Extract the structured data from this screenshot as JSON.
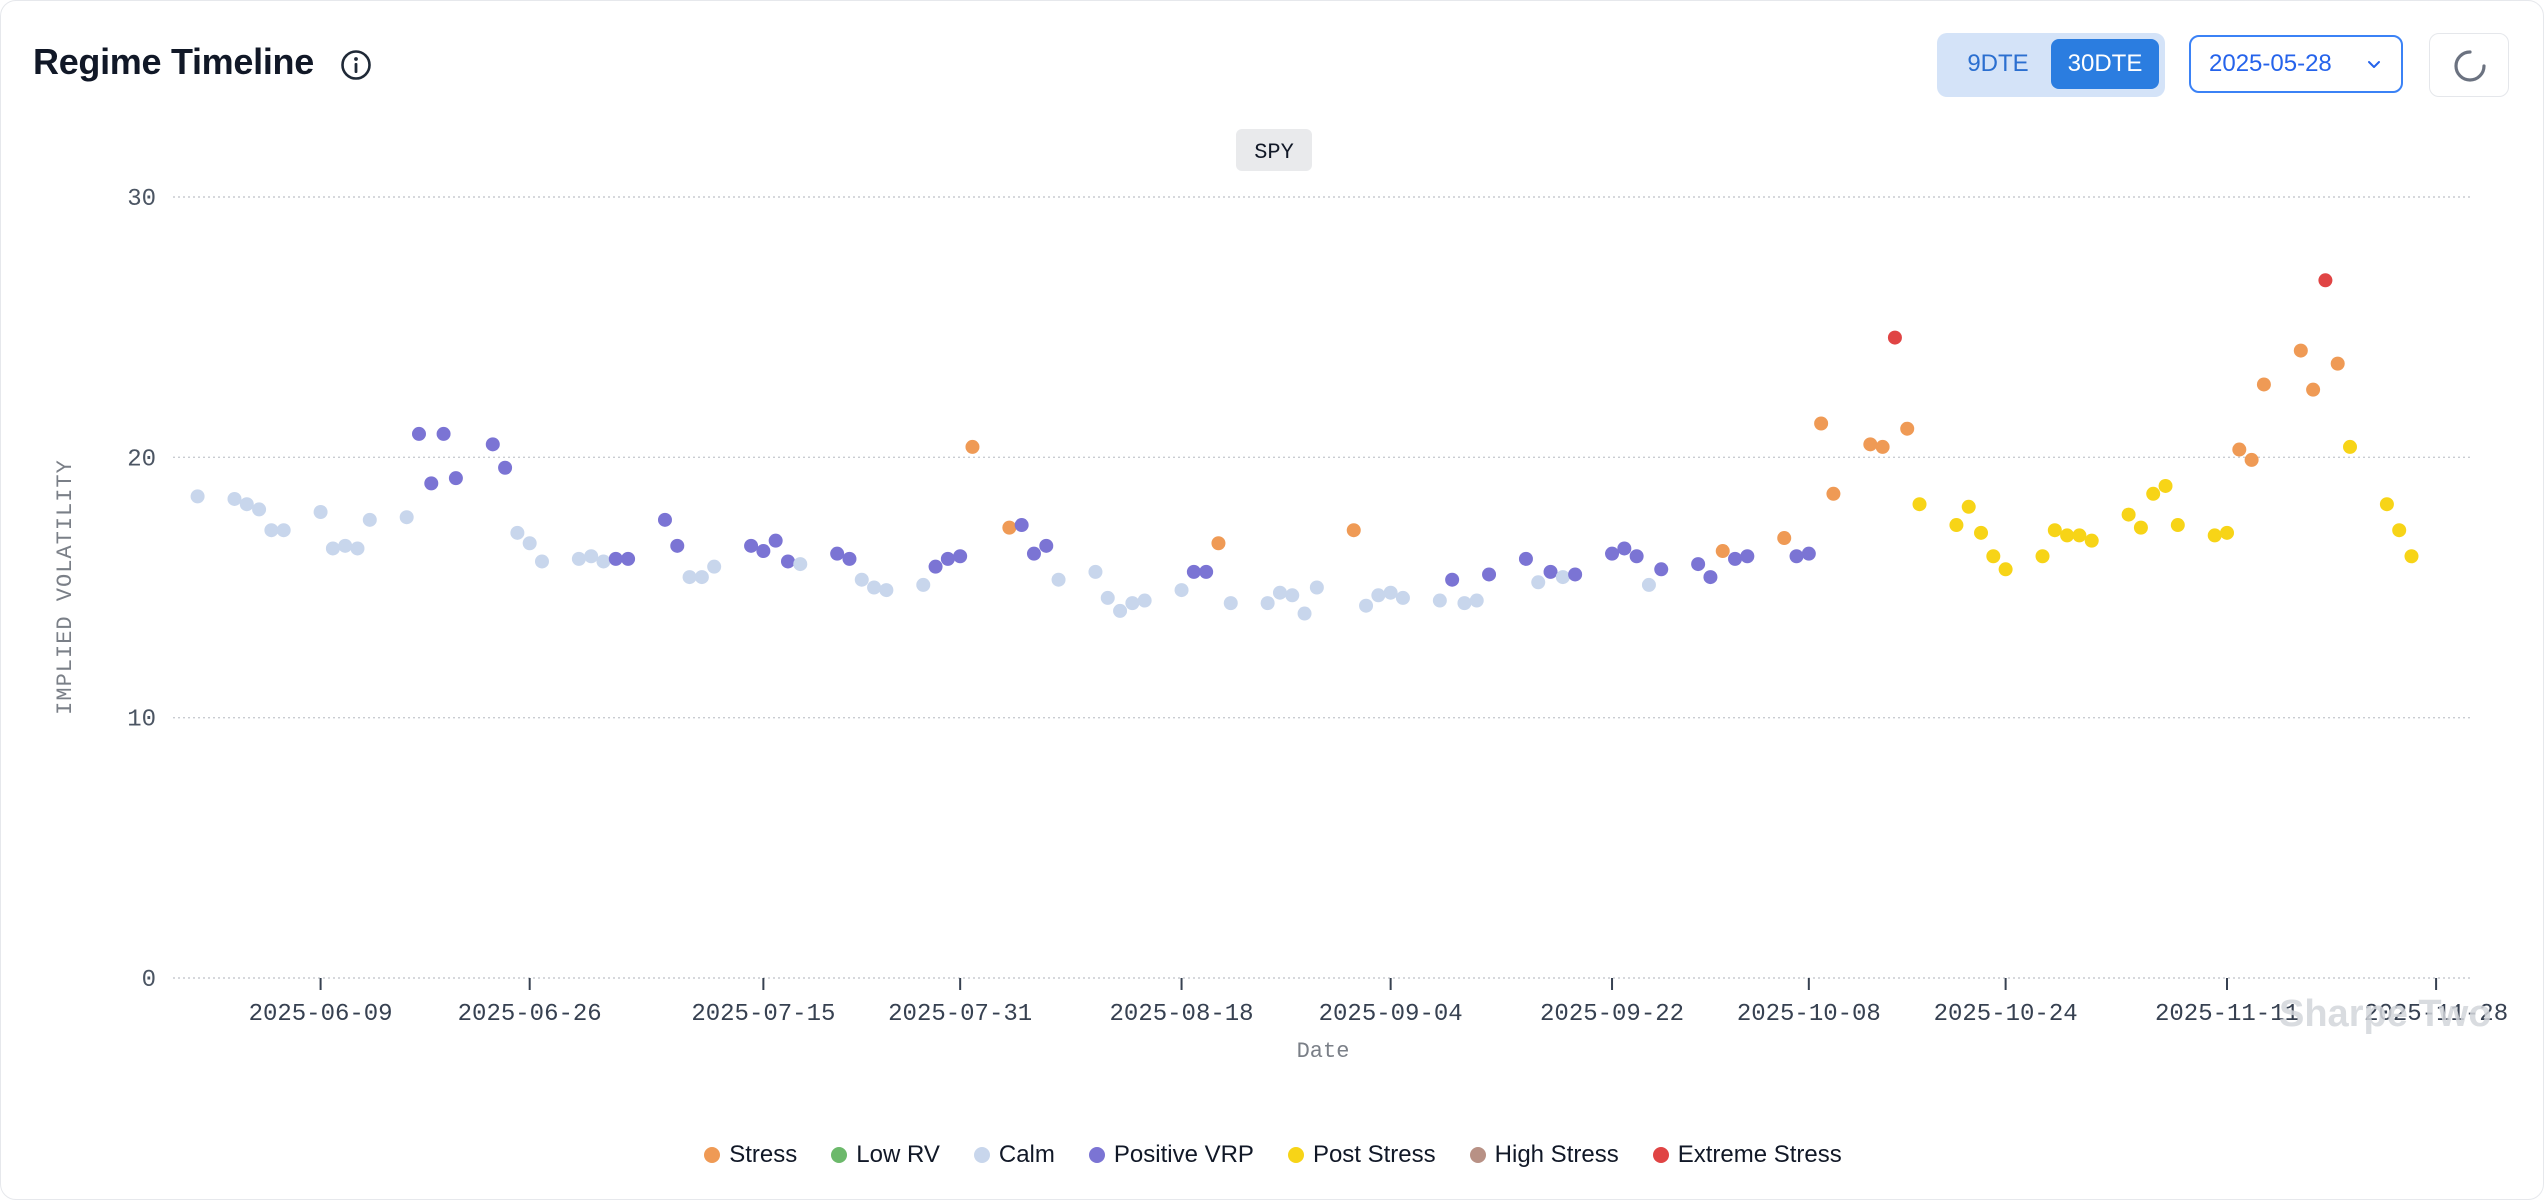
{
  "header": {
    "title": "Regime Timeline",
    "info_icon": "info-icon",
    "dte_options": [
      "9DTE",
      "30DTE"
    ],
    "dte_selected": "30DTE",
    "date_value": "2025-05-28",
    "refresh_icon": "loading-spinner-icon"
  },
  "watermark": "Sharpe Two",
  "colors": {
    "Stress": "#ef9a55",
    "Low RV": "#6cb96b",
    "Calm": "#c8d6ec",
    "Positive VRP": "#7b74d4",
    "Post Stress": "#f7d417",
    "High Stress": "#b89185",
    "Extreme Stress": "#e04444"
  },
  "chart_data": {
    "type": "scatter",
    "badge": "SPY",
    "xlabel": "Date",
    "ylabel": "IMPLIED VOLATILITY",
    "ylim": [
      0,
      30
    ],
    "xlim": [
      "2025-05-28",
      "2025-12-01"
    ],
    "yticks": [
      0,
      10,
      20,
      30
    ],
    "xticks": [
      "2025-06-09",
      "2025-06-26",
      "2025-07-15",
      "2025-07-31",
      "2025-08-18",
      "2025-09-04",
      "2025-09-22",
      "2025-10-08",
      "2025-10-24",
      "2025-11-11",
      "2025-11-28"
    ],
    "grid": true,
    "legend_position": "bottom-center",
    "legend": [
      "Stress",
      "Low RV",
      "Calm",
      "Positive VRP",
      "Post Stress",
      "High Stress",
      "Extreme Stress"
    ],
    "points": [
      {
        "date": "2025-05-30",
        "iv": 18.5,
        "regime": "Calm"
      },
      {
        "date": "2025-06-02",
        "iv": 18.4,
        "regime": "Calm"
      },
      {
        "date": "2025-06-03",
        "iv": 18.2,
        "regime": "Calm"
      },
      {
        "date": "2025-06-04",
        "iv": 18.0,
        "regime": "Calm"
      },
      {
        "date": "2025-06-05",
        "iv": 17.2,
        "regime": "Calm"
      },
      {
        "date": "2025-06-06",
        "iv": 17.2,
        "regime": "Calm"
      },
      {
        "date": "2025-06-09",
        "iv": 17.9,
        "regime": "Calm"
      },
      {
        "date": "2025-06-10",
        "iv": 16.5,
        "regime": "Calm"
      },
      {
        "date": "2025-06-11",
        "iv": 16.6,
        "regime": "Calm"
      },
      {
        "date": "2025-06-12",
        "iv": 16.5,
        "regime": "Calm"
      },
      {
        "date": "2025-06-13",
        "iv": 17.6,
        "regime": "Calm"
      },
      {
        "date": "2025-06-16",
        "iv": 17.7,
        "regime": "Calm"
      },
      {
        "date": "2025-06-17",
        "iv": 20.9,
        "regime": "Positive VRP"
      },
      {
        "date": "2025-06-18",
        "iv": 19.0,
        "regime": "Positive VRP"
      },
      {
        "date": "2025-06-19",
        "iv": 20.9,
        "regime": "Positive VRP"
      },
      {
        "date": "2025-06-20",
        "iv": 19.2,
        "regime": "Positive VRP"
      },
      {
        "date": "2025-06-23",
        "iv": 20.5,
        "regime": "Positive VRP"
      },
      {
        "date": "2025-06-24",
        "iv": 19.6,
        "regime": "Positive VRP"
      },
      {
        "date": "2025-06-25",
        "iv": 17.1,
        "regime": "Calm"
      },
      {
        "date": "2025-06-26",
        "iv": 16.7,
        "regime": "Calm"
      },
      {
        "date": "2025-06-27",
        "iv": 16.0,
        "regime": "Calm"
      },
      {
        "date": "2025-06-30",
        "iv": 16.1,
        "regime": "Calm"
      },
      {
        "date": "2025-07-01",
        "iv": 16.2,
        "regime": "Calm"
      },
      {
        "date": "2025-07-02",
        "iv": 16.0,
        "regime": "Calm"
      },
      {
        "date": "2025-07-03",
        "iv": 16.1,
        "regime": "Positive VRP"
      },
      {
        "date": "2025-07-04",
        "iv": 16.1,
        "regime": "Positive VRP"
      },
      {
        "date": "2025-07-07",
        "iv": 17.6,
        "regime": "Positive VRP"
      },
      {
        "date": "2025-07-08",
        "iv": 16.6,
        "regime": "Positive VRP"
      },
      {
        "date": "2025-07-09",
        "iv": 15.4,
        "regime": "Calm"
      },
      {
        "date": "2025-07-10",
        "iv": 15.4,
        "regime": "Calm"
      },
      {
        "date": "2025-07-11",
        "iv": 15.8,
        "regime": "Calm"
      },
      {
        "date": "2025-07-14",
        "iv": 16.6,
        "regime": "Positive VRP"
      },
      {
        "date": "2025-07-15",
        "iv": 16.4,
        "regime": "Positive VRP"
      },
      {
        "date": "2025-07-16",
        "iv": 16.8,
        "regime": "Positive VRP"
      },
      {
        "date": "2025-07-17",
        "iv": 16.0,
        "regime": "Positive VRP"
      },
      {
        "date": "2025-07-18",
        "iv": 15.9,
        "regime": "Calm"
      },
      {
        "date": "2025-07-21",
        "iv": 16.3,
        "regime": "Positive VRP"
      },
      {
        "date": "2025-07-22",
        "iv": 16.1,
        "regime": "Positive VRP"
      },
      {
        "date": "2025-07-23",
        "iv": 15.3,
        "regime": "Calm"
      },
      {
        "date": "2025-07-24",
        "iv": 15.0,
        "regime": "Calm"
      },
      {
        "date": "2025-07-25",
        "iv": 14.9,
        "regime": "Calm"
      },
      {
        "date": "2025-07-28",
        "iv": 15.1,
        "regime": "Calm"
      },
      {
        "date": "2025-07-29",
        "iv": 15.8,
        "regime": "Positive VRP"
      },
      {
        "date": "2025-07-30",
        "iv": 16.1,
        "regime": "Positive VRP"
      },
      {
        "date": "2025-07-31",
        "iv": 16.2,
        "regime": "Positive VRP"
      },
      {
        "date": "2025-08-01",
        "iv": 20.4,
        "regime": "Stress"
      },
      {
        "date": "2025-08-04",
        "iv": 17.3,
        "regime": "Stress"
      },
      {
        "date": "2025-08-05",
        "iv": 17.4,
        "regime": "Positive VRP"
      },
      {
        "date": "2025-08-06",
        "iv": 16.3,
        "regime": "Positive VRP"
      },
      {
        "date": "2025-08-07",
        "iv": 16.6,
        "regime": "Positive VRP"
      },
      {
        "date": "2025-08-08",
        "iv": 15.3,
        "regime": "Calm"
      },
      {
        "date": "2025-08-11",
        "iv": 15.6,
        "regime": "Calm"
      },
      {
        "date": "2025-08-12",
        "iv": 14.6,
        "regime": "Calm"
      },
      {
        "date": "2025-08-13",
        "iv": 14.1,
        "regime": "Calm"
      },
      {
        "date": "2025-08-14",
        "iv": 14.4,
        "regime": "Calm"
      },
      {
        "date": "2025-08-15",
        "iv": 14.5,
        "regime": "Calm"
      },
      {
        "date": "2025-08-18",
        "iv": 14.9,
        "regime": "Calm"
      },
      {
        "date": "2025-08-19",
        "iv": 15.6,
        "regime": "Positive VRP"
      },
      {
        "date": "2025-08-20",
        "iv": 15.6,
        "regime": "Positive VRP"
      },
      {
        "date": "2025-08-21",
        "iv": 16.7,
        "regime": "Stress"
      },
      {
        "date": "2025-08-22",
        "iv": 14.4,
        "regime": "Calm"
      },
      {
        "date": "2025-08-25",
        "iv": 14.4,
        "regime": "Calm"
      },
      {
        "date": "2025-08-26",
        "iv": 14.8,
        "regime": "Calm"
      },
      {
        "date": "2025-08-27",
        "iv": 14.7,
        "regime": "Calm"
      },
      {
        "date": "2025-08-28",
        "iv": 14.0,
        "regime": "Calm"
      },
      {
        "date": "2025-08-29",
        "iv": 15.0,
        "regime": "Calm"
      },
      {
        "date": "2025-09-01",
        "iv": 17.2,
        "regime": "Stress"
      },
      {
        "date": "2025-09-02",
        "iv": 14.3,
        "regime": "Calm"
      },
      {
        "date": "2025-09-03",
        "iv": 14.7,
        "regime": "Calm"
      },
      {
        "date": "2025-09-04",
        "iv": 14.8,
        "regime": "Calm"
      },
      {
        "date": "2025-09-05",
        "iv": 14.6,
        "regime": "Calm"
      },
      {
        "date": "2025-09-08",
        "iv": 14.5,
        "regime": "Calm"
      },
      {
        "date": "2025-09-09",
        "iv": 15.3,
        "regime": "Positive VRP"
      },
      {
        "date": "2025-09-10",
        "iv": 14.4,
        "regime": "Calm"
      },
      {
        "date": "2025-09-11",
        "iv": 14.5,
        "regime": "Calm"
      },
      {
        "date": "2025-09-12",
        "iv": 15.5,
        "regime": "Positive VRP"
      },
      {
        "date": "2025-09-15",
        "iv": 16.1,
        "regime": "Positive VRP"
      },
      {
        "date": "2025-09-16",
        "iv": 15.2,
        "regime": "Calm"
      },
      {
        "date": "2025-09-17",
        "iv": 15.6,
        "regime": "Positive VRP"
      },
      {
        "date": "2025-09-18",
        "iv": 15.4,
        "regime": "Calm"
      },
      {
        "date": "2025-09-19",
        "iv": 15.5,
        "regime": "Positive VRP"
      },
      {
        "date": "2025-09-22",
        "iv": 16.3,
        "regime": "Positive VRP"
      },
      {
        "date": "2025-09-23",
        "iv": 16.5,
        "regime": "Positive VRP"
      },
      {
        "date": "2025-09-24",
        "iv": 16.2,
        "regime": "Positive VRP"
      },
      {
        "date": "2025-09-25",
        "iv": 15.1,
        "regime": "Calm"
      },
      {
        "date": "2025-09-26",
        "iv": 15.7,
        "regime": "Positive VRP"
      },
      {
        "date": "2025-09-29",
        "iv": 15.9,
        "regime": "Positive VRP"
      },
      {
        "date": "2025-09-30",
        "iv": 15.4,
        "regime": "Positive VRP"
      },
      {
        "date": "2025-10-01",
        "iv": 16.4,
        "regime": "Stress"
      },
      {
        "date": "2025-10-02",
        "iv": 16.1,
        "regime": "Positive VRP"
      },
      {
        "date": "2025-10-03",
        "iv": 16.2,
        "regime": "Positive VRP"
      },
      {
        "date": "2025-10-06",
        "iv": 16.9,
        "regime": "Stress"
      },
      {
        "date": "2025-10-07",
        "iv": 16.2,
        "regime": "Positive VRP"
      },
      {
        "date": "2025-10-08",
        "iv": 16.3,
        "regime": "Positive VRP"
      },
      {
        "date": "2025-10-09",
        "iv": 21.3,
        "regime": "Stress"
      },
      {
        "date": "2025-10-10",
        "iv": 18.6,
        "regime": "Stress"
      },
      {
        "date": "2025-10-13",
        "iv": 20.5,
        "regime": "Stress"
      },
      {
        "date": "2025-10-14",
        "iv": 20.4,
        "regime": "Stress"
      },
      {
        "date": "2025-10-15",
        "iv": 24.6,
        "regime": "Extreme Stress"
      },
      {
        "date": "2025-10-16",
        "iv": 21.1,
        "regime": "Stress"
      },
      {
        "date": "2025-10-17",
        "iv": 18.2,
        "regime": "Post Stress"
      },
      {
        "date": "2025-10-20",
        "iv": 17.4,
        "regime": "Post Stress"
      },
      {
        "date": "2025-10-21",
        "iv": 18.1,
        "regime": "Post Stress"
      },
      {
        "date": "2025-10-22",
        "iv": 17.1,
        "regime": "Post Stress"
      },
      {
        "date": "2025-10-23",
        "iv": 16.2,
        "regime": "Post Stress"
      },
      {
        "date": "2025-10-24",
        "iv": 15.7,
        "regime": "Post Stress"
      },
      {
        "date": "2025-10-27",
        "iv": 16.2,
        "regime": "Post Stress"
      },
      {
        "date": "2025-10-28",
        "iv": 17.2,
        "regime": "Post Stress"
      },
      {
        "date": "2025-10-29",
        "iv": 17.0,
        "regime": "Post Stress"
      },
      {
        "date": "2025-10-30",
        "iv": 17.0,
        "regime": "Post Stress"
      },
      {
        "date": "2025-10-31",
        "iv": 16.8,
        "regime": "Post Stress"
      },
      {
        "date": "2025-11-03",
        "iv": 17.8,
        "regime": "Post Stress"
      },
      {
        "date": "2025-11-04",
        "iv": 17.3,
        "regime": "Post Stress"
      },
      {
        "date": "2025-11-05",
        "iv": 18.6,
        "regime": "Post Stress"
      },
      {
        "date": "2025-11-06",
        "iv": 18.9,
        "regime": "Post Stress"
      },
      {
        "date": "2025-11-07",
        "iv": 17.4,
        "regime": "Post Stress"
      },
      {
        "date": "2025-11-10",
        "iv": 17.0,
        "regime": "Post Stress"
      },
      {
        "date": "2025-11-11",
        "iv": 17.1,
        "regime": "Post Stress"
      },
      {
        "date": "2025-11-12",
        "iv": 20.3,
        "regime": "Stress"
      },
      {
        "date": "2025-11-13",
        "iv": 19.9,
        "regime": "Stress"
      },
      {
        "date": "2025-11-14",
        "iv": 22.8,
        "regime": "Stress"
      },
      {
        "date": "2025-11-17",
        "iv": 24.1,
        "regime": "Stress"
      },
      {
        "date": "2025-11-18",
        "iv": 22.6,
        "regime": "Stress"
      },
      {
        "date": "2025-11-19",
        "iv": 26.8,
        "regime": "Extreme Stress"
      },
      {
        "date": "2025-11-20",
        "iv": 23.6,
        "regime": "Stress"
      },
      {
        "date": "2025-11-21",
        "iv": 20.4,
        "regime": "Post Stress"
      },
      {
        "date": "2025-11-24",
        "iv": 18.2,
        "regime": "Post Stress"
      },
      {
        "date": "2025-11-25",
        "iv": 17.2,
        "regime": "Post Stress"
      },
      {
        "date": "2025-11-26",
        "iv": 16.2,
        "regime": "Post Stress"
      }
    ]
  }
}
